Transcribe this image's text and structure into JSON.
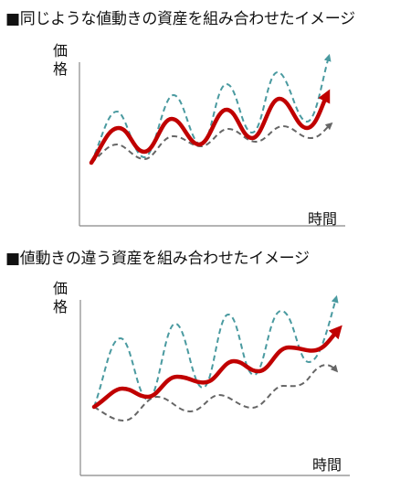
{
  "panels": [
    {
      "heading": "■同じような値動きの資産を組み合わせたイメージ",
      "y_label_chars": [
        "価",
        "格"
      ],
      "x_label": "時間"
    },
    {
      "heading": "■値動きの違う資産を組み合わせたイメージ",
      "y_label_chars": [
        "価",
        "格"
      ],
      "x_label": "時間"
    }
  ],
  "colors": {
    "combined": "#c00000",
    "asset_a": "#4a9aa0",
    "asset_b": "#666666",
    "axis": "#888888"
  }
}
